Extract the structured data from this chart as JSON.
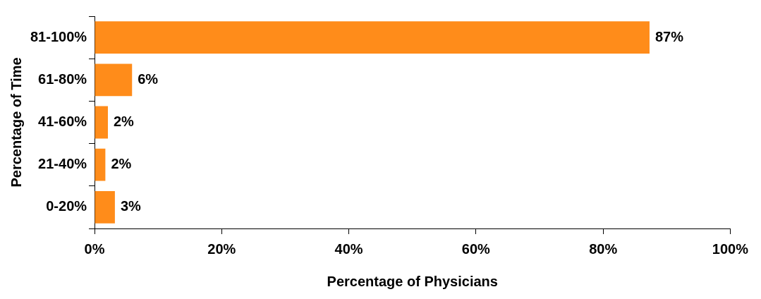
{
  "chart_data": {
    "type": "bar",
    "orientation": "horizontal",
    "xlabel": "Percentage of Physicians",
    "ylabel": "Percentage of Time",
    "categories": [
      "81-100%",
      "61-80%",
      "41-60%",
      "21-40%",
      "0-20%"
    ],
    "values": [
      87.3,
      5.9,
      2.1,
      1.7,
      3.2
    ],
    "value_labels": [
      "87%",
      "6%",
      "2%",
      "2%",
      "3%"
    ],
    "color": "#ff8c1a",
    "xlim": [
      0,
      100
    ],
    "xticks": [
      {
        "value": 0,
        "label": "0%"
      },
      {
        "value": 20,
        "label": "20%"
      },
      {
        "value": 40,
        "label": "40%"
      },
      {
        "value": 60,
        "label": "60%"
      },
      {
        "value": 80,
        "label": "80%"
      },
      {
        "value": 100,
        "label": "100%"
      }
    ],
    "grid": false,
    "legend": false
  }
}
